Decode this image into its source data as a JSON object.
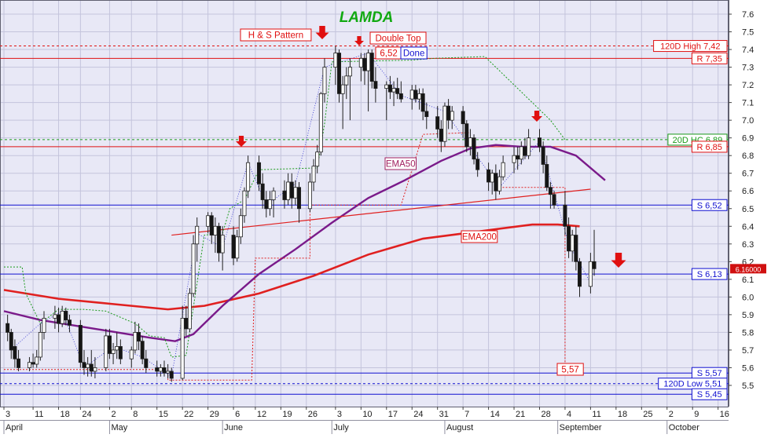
{
  "chart_data": {
    "type": "candlestick",
    "title": "LAMDA",
    "ylim": [
      5.38,
      7.68
    ],
    "y_ticks": [
      5.5,
      5.6,
      5.7,
      5.8,
      5.9,
      6.0,
      6.1,
      6.2,
      6.3,
      6.4,
      6.5,
      6.6,
      6.7,
      6.8,
      6.9,
      7.0,
      7.1,
      7.2,
      7.3,
      7.4,
      7.5,
      7.6
    ],
    "x_ticks": [
      {
        "label": "3",
        "day": 0
      },
      {
        "label": "11",
        "day": 8
      },
      {
        "label": "18",
        "day": 15
      },
      {
        "label": "24",
        "day": 21
      },
      {
        "label": "2",
        "day": 29
      },
      {
        "label": "8",
        "day": 35
      },
      {
        "label": "15",
        "day": 42
      },
      {
        "label": "22",
        "day": 49
      },
      {
        "label": "29",
        "day": 56
      },
      {
        "label": "6",
        "day": 63
      },
      {
        "label": "12",
        "day": 69
      },
      {
        "label": "19",
        "day": 76
      },
      {
        "label": "26",
        "day": 83
      },
      {
        "label": "3",
        "day": 91
      },
      {
        "label": "10",
        "day": 98
      },
      {
        "label": "17",
        "day": 105
      },
      {
        "label": "24",
        "day": 112
      },
      {
        "label": "31",
        "day": 119
      },
      {
        "label": "7",
        "day": 126
      },
      {
        "label": "14",
        "day": 133
      },
      {
        "label": "21",
        "day": 140
      },
      {
        "label": "28",
        "day": 147
      },
      {
        "label": "4",
        "day": 154
      },
      {
        "label": "11",
        "day": 161
      },
      {
        "label": "18",
        "day": 168
      },
      {
        "label": "25",
        "day": 175
      },
      {
        "label": "2",
        "day": 182
      },
      {
        "label": "9",
        "day": 189
      },
      {
        "label": "16",
        "day": 196
      }
    ],
    "months": [
      {
        "label": "April",
        "day": 0
      },
      {
        "label": "May",
        "day": 29
      },
      {
        "label": "June",
        "day": 60
      },
      {
        "label": "July",
        "day": 90
      },
      {
        "label": "August",
        "day": 121
      },
      {
        "label": "September",
        "day": 152
      },
      {
        "label": "October",
        "day": 182
      }
    ],
    "last_price": "6.16000",
    "levels": [
      {
        "label": "120D High 7,42",
        "value": 7.42,
        "color": "#e01010",
        "dash": true,
        "label_color": "#e01010"
      },
      {
        "label": "R 7,35",
        "value": 7.35,
        "color": "#e01010",
        "dash": false,
        "label_color": "#e01010"
      },
      {
        "label": "20D HC 6,89",
        "value": 6.89,
        "color": "#1a9a1a",
        "dash": true,
        "label_color": "#1a9a1a"
      },
      {
        "label": "R 6,85",
        "value": 6.85,
        "color": "#e01010",
        "dash": false,
        "label_color": "#e01010"
      },
      {
        "label": "S 6,52",
        "value": 6.52,
        "color": "#1010d0",
        "dash": false,
        "label_color": "#1010d0"
      },
      {
        "label": "S 6,13",
        "value": 6.13,
        "color": "#1010d0",
        "dash": false,
        "label_color": "#1010d0"
      },
      {
        "label": "S 5,57",
        "value": 5.57,
        "color": "#1010d0",
        "dash": false,
        "label_color": "#1010d0"
      },
      {
        "label": "120D Low 5,51",
        "value": 5.51,
        "color": "#1010d0",
        "dash": true,
        "label_color": "#1010d0"
      },
      {
        "label": "S 5,45",
        "value": 5.45,
        "color": "#1010d0",
        "dash": false,
        "label_color": "#1010d0"
      }
    ],
    "annotations": {
      "hs_pattern": "H & S Pattern",
      "double_top": "Double Top",
      "done": "Done",
      "dt_level": "6,52",
      "ema50": "EMA50",
      "ema200": "EMA200",
      "target_low": "5,57"
    },
    "ohlc": [
      {
        "d": 1,
        "o": 5.85,
        "h": 5.9,
        "l": 5.75,
        "c": 5.8
      },
      {
        "d": 2,
        "o": 5.8,
        "h": 5.82,
        "l": 5.65,
        "c": 5.7
      },
      {
        "d": 3,
        "o": 5.72,
        "h": 5.76,
        "l": 5.6,
        "c": 5.65
      },
      {
        "d": 4,
        "o": 5.65,
        "h": 5.7,
        "l": 5.58,
        "c": 5.6
      },
      {
        "d": 7,
        "o": 5.6,
        "h": 5.66,
        "l": 5.58,
        "c": 5.63
      },
      {
        "d": 8,
        "o": 5.63,
        "h": 5.68,
        "l": 5.6,
        "c": 5.62
      },
      {
        "d": 9,
        "o": 5.62,
        "h": 5.7,
        "l": 5.6,
        "c": 5.66
      },
      {
        "d": 10,
        "o": 5.66,
        "h": 5.85,
        "l": 5.64,
        "c": 5.8
      },
      {
        "d": 11,
        "o": 5.8,
        "h": 5.92,
        "l": 5.76,
        "c": 5.88
      },
      {
        "d": 14,
        "o": 5.88,
        "h": 5.95,
        "l": 5.82,
        "c": 5.9
      },
      {
        "d": 15,
        "o": 5.9,
        "h": 5.94,
        "l": 5.8,
        "c": 5.85
      },
      {
        "d": 16,
        "o": 5.85,
        "h": 5.95,
        "l": 5.83,
        "c": 5.92
      },
      {
        "d": 17,
        "o": 5.92,
        "h": 5.94,
        "l": 5.84,
        "c": 5.87
      },
      {
        "d": 18,
        "o": 5.87,
        "h": 5.9,
        "l": 5.8,
        "c": 5.84
      },
      {
        "d": 21,
        "o": 5.84,
        "h": 5.87,
        "l": 5.6,
        "c": 5.63
      },
      {
        "d": 22,
        "o": 5.63,
        "h": 5.7,
        "l": 5.56,
        "c": 5.6
      },
      {
        "d": 23,
        "o": 5.6,
        "h": 5.66,
        "l": 5.55,
        "c": 5.62
      },
      {
        "d": 24,
        "o": 5.62,
        "h": 5.7,
        "l": 5.55,
        "c": 5.58
      },
      {
        "d": 25,
        "o": 5.58,
        "h": 5.66,
        "l": 5.54,
        "c": 5.6
      },
      {
        "d": 28,
        "o": 5.6,
        "h": 5.82,
        "l": 5.58,
        "c": 5.78
      },
      {
        "d": 29,
        "o": 5.78,
        "h": 5.82,
        "l": 5.65,
        "c": 5.68
      },
      {
        "d": 30,
        "o": 5.68,
        "h": 5.74,
        "l": 5.62,
        "c": 5.7
      },
      {
        "d": 31,
        "o": 5.7,
        "h": 5.8,
        "l": 5.65,
        "c": 5.72
      },
      {
        "d": 32,
        "o": 5.72,
        "h": 5.76,
        "l": 5.62,
        "c": 5.65
      },
      {
        "d": 35,
        "o": 5.65,
        "h": 5.72,
        "l": 5.6,
        "c": 5.7
      },
      {
        "d": 36,
        "o": 5.7,
        "h": 5.86,
        "l": 5.68,
        "c": 5.8
      },
      {
        "d": 37,
        "o": 5.8,
        "h": 5.85,
        "l": 5.7,
        "c": 5.75
      },
      {
        "d": 38,
        "o": 5.75,
        "h": 5.78,
        "l": 5.62,
        "c": 5.65
      },
      {
        "d": 39,
        "o": 5.65,
        "h": 5.7,
        "l": 5.57,
        "c": 5.6
      },
      {
        "d": 42,
        "o": 5.6,
        "h": 5.64,
        "l": 5.55,
        "c": 5.58
      },
      {
        "d": 43,
        "o": 5.58,
        "h": 5.62,
        "l": 5.55,
        "c": 5.6
      },
      {
        "d": 44,
        "o": 5.6,
        "h": 5.64,
        "l": 5.55,
        "c": 5.57
      },
      {
        "d": 45,
        "o": 5.57,
        "h": 5.62,
        "l": 5.54,
        "c": 5.58
      },
      {
        "d": 46,
        "o": 5.58,
        "h": 5.6,
        "l": 5.52,
        "c": 5.54
      },
      {
        "d": 49,
        "o": 5.54,
        "h": 5.95,
        "l": 5.53,
        "c": 5.88
      },
      {
        "d": 50,
        "o": 5.88,
        "h": 5.95,
        "l": 5.78,
        "c": 5.82
      },
      {
        "d": 51,
        "o": 5.82,
        "h": 6.05,
        "l": 5.8,
        "c": 6.02
      },
      {
        "d": 52,
        "o": 6.02,
        "h": 6.35,
        "l": 6.0,
        "c": 6.3
      },
      {
        "d": 53,
        "o": 6.3,
        "h": 6.45,
        "l": 6.2,
        "c": 6.4
      },
      {
        "d": 56,
        "o": 6.4,
        "h": 6.48,
        "l": 6.36,
        "c": 6.46
      },
      {
        "d": 57,
        "o": 6.46,
        "h": 6.48,
        "l": 6.3,
        "c": 6.35
      },
      {
        "d": 58,
        "o": 6.35,
        "h": 6.45,
        "l": 6.25,
        "c": 6.4
      },
      {
        "d": 59,
        "o": 6.4,
        "h": 6.42,
        "l": 6.2,
        "c": 6.25
      },
      {
        "d": 60,
        "o": 6.25,
        "h": 6.4,
        "l": 6.15,
        "c": 6.35
      },
      {
        "d": 63,
        "o": 6.35,
        "h": 6.4,
        "l": 6.18,
        "c": 6.22
      },
      {
        "d": 64,
        "o": 6.22,
        "h": 6.38,
        "l": 6.2,
        "c": 6.34
      },
      {
        "d": 65,
        "o": 6.34,
        "h": 6.5,
        "l": 6.3,
        "c": 6.46
      },
      {
        "d": 66,
        "o": 6.46,
        "h": 6.62,
        "l": 6.42,
        "c": 6.6
      },
      {
        "d": 67,
        "o": 6.6,
        "h": 6.8,
        "l": 6.56,
        "c": 6.76
      },
      {
        "d": 70,
        "o": 6.76,
        "h": 6.8,
        "l": 6.6,
        "c": 6.64
      },
      {
        "d": 71,
        "o": 6.64,
        "h": 6.7,
        "l": 6.5,
        "c": 6.55
      },
      {
        "d": 72,
        "o": 6.55,
        "h": 6.6,
        "l": 6.45,
        "c": 6.5
      },
      {
        "d": 73,
        "o": 6.5,
        "h": 6.6,
        "l": 6.46,
        "c": 6.55
      },
      {
        "d": 74,
        "o": 6.55,
        "h": 6.62,
        "l": 6.45,
        "c": 6.6
      },
      {
        "d": 77,
        "o": 6.6,
        "h": 6.66,
        "l": 6.5,
        "c": 6.55
      },
      {
        "d": 78,
        "o": 6.55,
        "h": 6.7,
        "l": 6.52,
        "c": 6.65
      },
      {
        "d": 79,
        "o": 6.65,
        "h": 6.7,
        "l": 6.5,
        "c": 6.56
      },
      {
        "d": 80,
        "o": 6.56,
        "h": 6.66,
        "l": 6.52,
        "c": 6.62
      },
      {
        "d": 81,
        "o": 6.62,
        "h": 6.65,
        "l": 6.42,
        "c": 6.5
      },
      {
        "d": 84,
        "o": 6.5,
        "h": 6.7,
        "l": 6.48,
        "c": 6.65
      },
      {
        "d": 85,
        "o": 6.65,
        "h": 6.78,
        "l": 6.6,
        "c": 6.74
      },
      {
        "d": 86,
        "o": 6.74,
        "h": 6.86,
        "l": 6.7,
        "c": 6.82
      },
      {
        "d": 87,
        "o": 6.82,
        "h": 7.16,
        "l": 6.8,
        "c": 7.15
      },
      {
        "d": 88,
        "o": 7.15,
        "h": 7.35,
        "l": 7.1,
        "c": 7.3
      },
      {
        "d": 91,
        "o": 7.3,
        "h": 7.42,
        "l": 7.2,
        "c": 7.38
      },
      {
        "d": 92,
        "o": 7.38,
        "h": 7.4,
        "l": 7.1,
        "c": 7.15
      },
      {
        "d": 93,
        "o": 7.15,
        "h": 7.25,
        "l": 6.95,
        "c": 7.2
      },
      {
        "d": 94,
        "o": 7.2,
        "h": 7.3,
        "l": 7.12,
        "c": 7.25
      },
      {
        "d": 95,
        "o": 7.25,
        "h": 7.35,
        "l": 7.0,
        "c": 7.3
      },
      {
        "d": 98,
        "o": 7.3,
        "h": 7.38,
        "l": 7.22,
        "c": 7.35
      },
      {
        "d": 99,
        "o": 7.35,
        "h": 7.38,
        "l": 7.2,
        "c": 7.28
      },
      {
        "d": 100,
        "o": 7.28,
        "h": 7.4,
        "l": 7.05,
        "c": 7.38
      },
      {
        "d": 101,
        "o": 7.38,
        "h": 7.4,
        "l": 7.18,
        "c": 7.22
      },
      {
        "d": 102,
        "o": 7.22,
        "h": 7.3,
        "l": 7.1,
        "c": 7.18
      },
      {
        "d": 105,
        "o": 7.18,
        "h": 7.22,
        "l": 7.0,
        "c": 7.2
      },
      {
        "d": 106,
        "o": 7.2,
        "h": 7.25,
        "l": 7.12,
        "c": 7.16
      },
      {
        "d": 107,
        "o": 7.16,
        "h": 7.22,
        "l": 7.08,
        "c": 7.18
      },
      {
        "d": 108,
        "o": 7.18,
        "h": 7.24,
        "l": 7.12,
        "c": 7.15
      },
      {
        "d": 109,
        "o": 7.15,
        "h": 7.22,
        "l": 7.1,
        "c": 7.12
      },
      {
        "d": 112,
        "o": 7.12,
        "h": 7.2,
        "l": 7.06,
        "c": 7.17
      },
      {
        "d": 113,
        "o": 7.17,
        "h": 7.2,
        "l": 7.1,
        "c": 7.12
      },
      {
        "d": 114,
        "o": 7.12,
        "h": 7.18,
        "l": 7.06,
        "c": 7.15
      },
      {
        "d": 115,
        "o": 7.15,
        "h": 7.18,
        "l": 7.0,
        "c": 7.05
      },
      {
        "d": 116,
        "o": 7.05,
        "h": 7.1,
        "l": 6.95,
        "c": 7.02
      },
      {
        "d": 119,
        "o": 7.02,
        "h": 7.08,
        "l": 6.9,
        "c": 6.95
      },
      {
        "d": 120,
        "o": 6.95,
        "h": 7.0,
        "l": 6.82,
        "c": 6.88
      },
      {
        "d": 121,
        "o": 6.88,
        "h": 7.1,
        "l": 6.85,
        "c": 7.08
      },
      {
        "d": 122,
        "o": 7.08,
        "h": 7.12,
        "l": 6.95,
        "c": 7.0
      },
      {
        "d": 123,
        "o": 7.0,
        "h": 7.08,
        "l": 6.95,
        "c": 7.05
      },
      {
        "d": 126,
        "o": 7.05,
        "h": 7.08,
        "l": 6.9,
        "c": 6.98
      },
      {
        "d": 127,
        "o": 6.98,
        "h": 7.0,
        "l": 6.82,
        "c": 6.85
      },
      {
        "d": 128,
        "o": 6.85,
        "h": 6.95,
        "l": 6.8,
        "c": 6.9
      },
      {
        "d": 129,
        "o": 6.9,
        "h": 6.92,
        "l": 6.75,
        "c": 6.78
      },
      {
        "d": 130,
        "o": 6.78,
        "h": 6.82,
        "l": 6.68,
        "c": 6.72
      },
      {
        "d": 133,
        "o": 6.72,
        "h": 6.76,
        "l": 6.6,
        "c": 6.65
      },
      {
        "d": 134,
        "o": 6.65,
        "h": 6.72,
        "l": 6.58,
        "c": 6.7
      },
      {
        "d": 135,
        "o": 6.7,
        "h": 6.75,
        "l": 6.55,
        "c": 6.6
      },
      {
        "d": 136,
        "o": 6.6,
        "h": 6.72,
        "l": 6.58,
        "c": 6.68
      },
      {
        "d": 137,
        "o": 6.68,
        "h": 6.8,
        "l": 6.66,
        "c": 6.76
      },
      {
        "d": 140,
        "o": 6.76,
        "h": 6.85,
        "l": 6.7,
        "c": 6.8
      },
      {
        "d": 141,
        "o": 6.8,
        "h": 6.85,
        "l": 6.72,
        "c": 6.78
      },
      {
        "d": 142,
        "o": 6.78,
        "h": 6.88,
        "l": 6.75,
        "c": 6.85
      },
      {
        "d": 143,
        "o": 6.85,
        "h": 6.9,
        "l": 6.78,
        "c": 6.8
      },
      {
        "d": 144,
        "o": 6.8,
        "h": 6.95,
        "l": 6.78,
        "c": 6.9
      },
      {
        "d": 147,
        "o": 6.9,
        "h": 6.95,
        "l": 6.82,
        "c": 6.85
      },
      {
        "d": 148,
        "o": 6.85,
        "h": 6.88,
        "l": 6.7,
        "c": 6.75
      },
      {
        "d": 149,
        "o": 6.75,
        "h": 6.8,
        "l": 6.6,
        "c": 6.62
      },
      {
        "d": 150,
        "o": 6.62,
        "h": 6.65,
        "l": 6.5,
        "c": 6.58
      },
      {
        "d": 151,
        "o": 6.58,
        "h": 6.6,
        "l": 6.5,
        "c": 6.52
      },
      {
        "d": 154,
        "o": 6.52,
        "h": 6.6,
        "l": 6.35,
        "c": 6.4
      },
      {
        "d": 155,
        "o": 6.4,
        "h": 6.45,
        "l": 6.22,
        "c": 6.26
      },
      {
        "d": 156,
        "o": 6.26,
        "h": 6.38,
        "l": 6.2,
        "c": 6.35
      },
      {
        "d": 157,
        "o": 6.35,
        "h": 6.4,
        "l": 6.15,
        "c": 6.2
      },
      {
        "d": 158,
        "o": 6.2,
        "h": 6.22,
        "l": 6.0,
        "c": 6.06
      },
      {
        "d": 161,
        "o": 6.06,
        "h": 6.25,
        "l": 6.02,
        "c": 6.2
      },
      {
        "d": 162,
        "o": 6.2,
        "h": 6.38,
        "l": 6.12,
        "c": 6.16
      }
    ]
  }
}
